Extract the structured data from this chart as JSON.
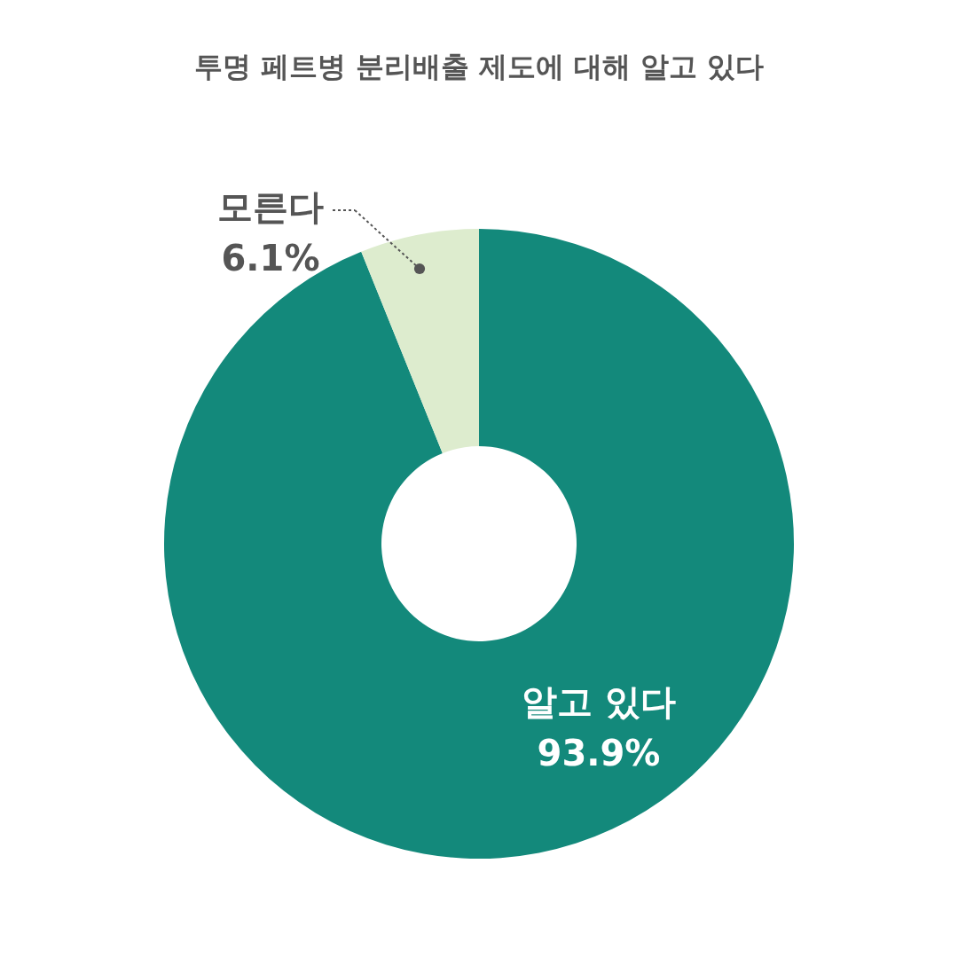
{
  "chart_data": {
    "type": "donut",
    "title": "투명 페트병 분리배출 제도에 대해 알고 있다",
    "categories": [
      "알고 있다",
      "모른다"
    ],
    "values": [
      93.9,
      6.1
    ],
    "colors": [
      "#13897b",
      "#ddecce"
    ],
    "value_labels": [
      "93.9%",
      "6.1%"
    ],
    "legend": false
  }
}
